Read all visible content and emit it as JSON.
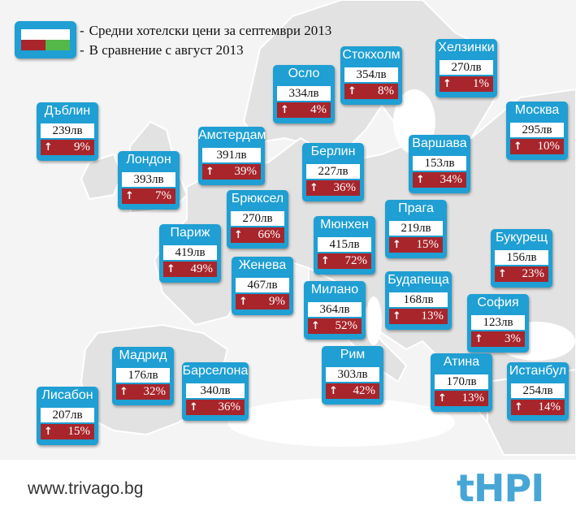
{
  "legend": {
    "line1": "Средни хотелски цени за септември 2013",
    "line2": "В сравнение с август 2013"
  },
  "footer": {
    "website": "www.trivago.bg",
    "brand": "tHPI"
  },
  "colors": {
    "card_blue": "#1f9fd3",
    "increase_red": "#a8252b",
    "legend_green": "#53b847",
    "sea": "#ffffff",
    "land": "#e2e2e2"
  },
  "cities": [
    {
      "name": "Осло",
      "price": "334лв",
      "change": "4%"
    },
    {
      "name": "Стокхолм",
      "price": "354лв",
      "change": "8%"
    },
    {
      "name": "Хелзинки",
      "price": "270лв",
      "change": "1%"
    },
    {
      "name": "Дъблин",
      "price": "239лв",
      "change": "9%"
    },
    {
      "name": "Москва",
      "price": "295лв",
      "change": "10%"
    },
    {
      "name": "Амстердам",
      "price": "391лв",
      "change": "39%"
    },
    {
      "name": "Лондон",
      "price": "393лв",
      "change": "7%"
    },
    {
      "name": "Берлин",
      "price": "227лв",
      "change": "36%"
    },
    {
      "name": "Варшава",
      "price": "153лв",
      "change": "34%"
    },
    {
      "name": "Брюксел",
      "price": "270лв",
      "change": "66%"
    },
    {
      "name": "Прага",
      "price": "219лв",
      "change": "15%"
    },
    {
      "name": "Мюнхен",
      "price": "415лв",
      "change": "72%"
    },
    {
      "name": "Париж",
      "price": "419лв",
      "change": "49%"
    },
    {
      "name": "Букурещ",
      "price": "156лв",
      "change": "23%"
    },
    {
      "name": "Женева",
      "price": "467лв",
      "change": "9%"
    },
    {
      "name": "Будапеща",
      "price": "168лв",
      "change": "13%"
    },
    {
      "name": "Милано",
      "price": "364лв",
      "change": "52%"
    },
    {
      "name": "София",
      "price": "123лв",
      "change": "3%"
    },
    {
      "name": "Мадрид",
      "price": "176лв",
      "change": "32%"
    },
    {
      "name": "Рим",
      "price": "303лв",
      "change": "42%"
    },
    {
      "name": "Атина",
      "price": "170лв",
      "change": "13%"
    },
    {
      "name": "Истанбул",
      "price": "254лв",
      "change": "14%"
    },
    {
      "name": "Барселона",
      "price": "340лв",
      "change": "36%"
    },
    {
      "name": "Лисабон",
      "price": "207лв",
      "change": "15%"
    }
  ]
}
